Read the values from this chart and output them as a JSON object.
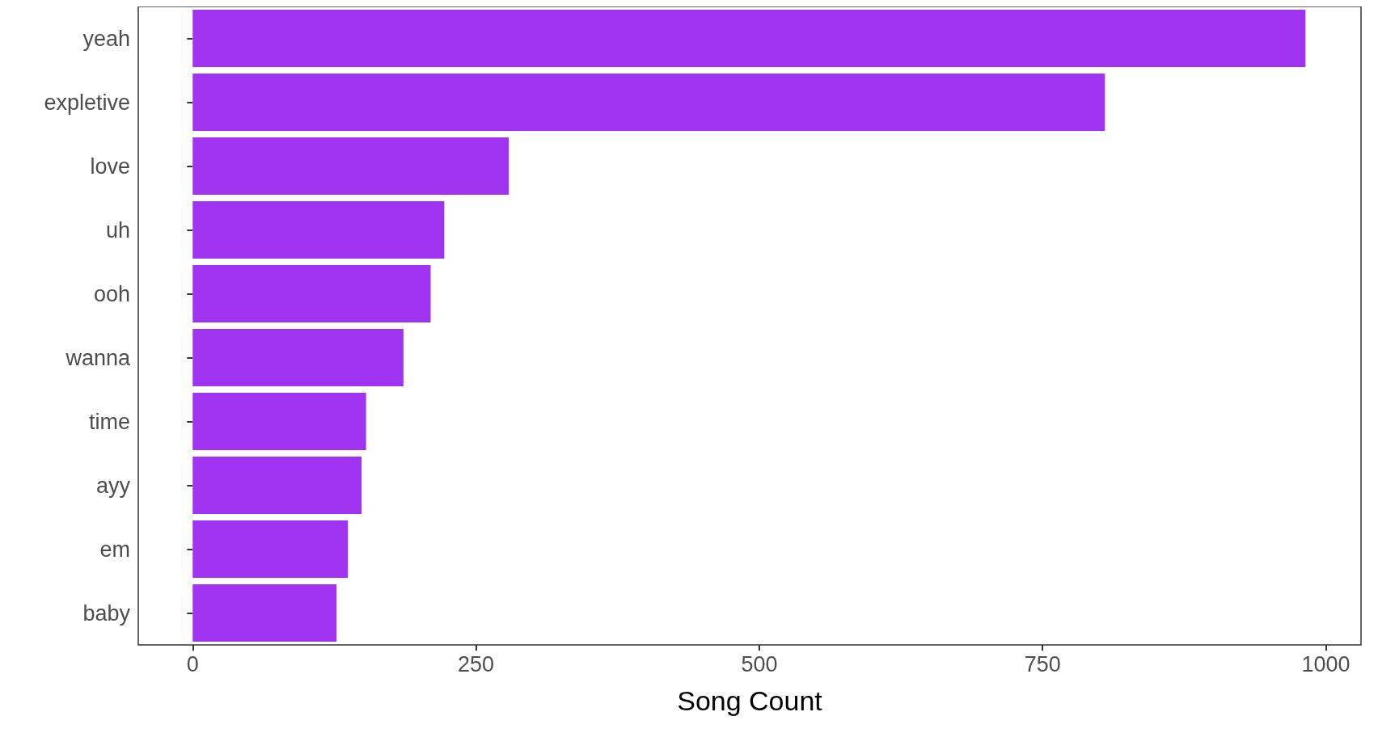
{
  "chart_data": {
    "type": "bar",
    "orientation": "horizontal",
    "xlabel": "Song Count",
    "categories": [
      "yeah",
      "expletive",
      "love",
      "uh",
      "ooh",
      "wanna",
      "time",
      "ayy",
      "em",
      "baby"
    ],
    "values": [
      982,
      805,
      279,
      222,
      210,
      186,
      153,
      149,
      137,
      127
    ],
    "color": "#a033f0",
    "xlim": [
      -48,
      1031
    ],
    "xticks": [
      0,
      250,
      500,
      750,
      1000
    ],
    "grid": false
  }
}
